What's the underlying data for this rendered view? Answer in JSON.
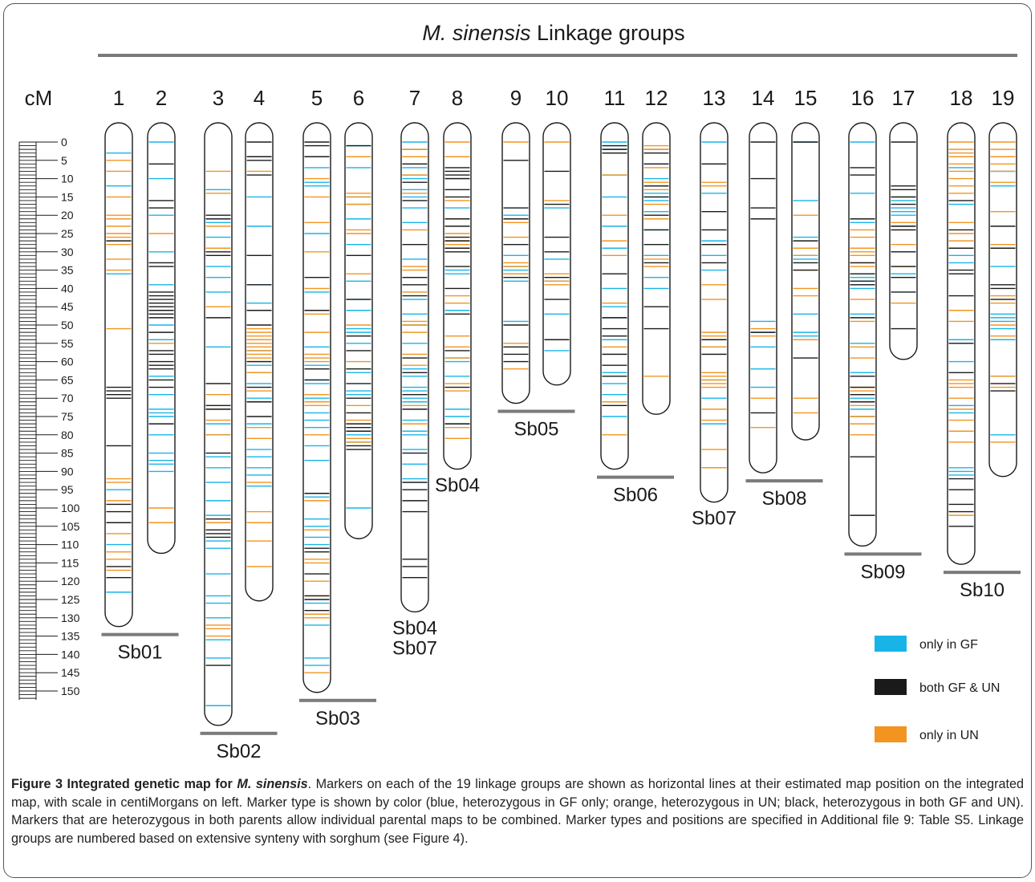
{
  "header": {
    "title_italic": "M. sinensis",
    "title_rest": " Linkage groups"
  },
  "scale": {
    "unit_label": "cM",
    "max_cm": 150,
    "tick_labels": [
      "0",
      "5",
      "10",
      "15",
      "20",
      "25",
      "30",
      "35",
      "40",
      "45",
      "50",
      "55",
      "60",
      "65",
      "70",
      "75",
      "80",
      "85",
      "90",
      "95",
      "100",
      "105",
      "110",
      "115",
      "120",
      "125",
      "130",
      "135",
      "140",
      "145",
      "150"
    ]
  },
  "colors": {
    "gf": "#18b4e8",
    "both": "#1a1a1a",
    "un": "#f39420",
    "bar": "#7a7a7a",
    "outline": "#1a1a1a"
  },
  "legend": [
    {
      "label": "only in GF",
      "color": "#18b4e8"
    },
    {
      "label": "both GF & UN",
      "color": "#1a1a1a"
    },
    {
      "label": "only in UN",
      "color": "#f39420"
    }
  ],
  "chart_data": {
    "type": "genetic-linkage-map",
    "linkage_groups": [
      {
        "id": "1",
        "length_cm": 128,
        "markers": {
          "gf": [
            3,
            12,
            36,
            95,
            110,
            123
          ],
          "both": [
            27,
            67,
            68,
            69,
            70,
            83,
            99,
            101,
            104,
            116,
            119
          ],
          "un": [
            5,
            8,
            15,
            20,
            21,
            23,
            25,
            26,
            28,
            32,
            35,
            51,
            92,
            93,
            98,
            107,
            112,
            114,
            117
          ]
        }
      },
      {
        "id": "2",
        "length_cm": 108,
        "markers": {
          "gf": [
            0,
            10,
            20,
            30,
            39,
            50,
            54,
            64,
            69,
            73,
            74,
            75,
            80,
            85,
            87,
            88,
            90
          ],
          "both": [
            6,
            16,
            18,
            33,
            34,
            41,
            42,
            43,
            44,
            45,
            46,
            47,
            48,
            52,
            57,
            58,
            60,
            61,
            62,
            65,
            67,
            77
          ],
          "un": [
            25,
            55,
            100,
            104
          ]
        }
      },
      {
        "id": "3",
        "length_cm": 155,
        "markers": {
          "gf": [
            13,
            22,
            26,
            34,
            37,
            41,
            56,
            77,
            80,
            86,
            89,
            93,
            98,
            102,
            109,
            111,
            118,
            124,
            126,
            130,
            136,
            141,
            154
          ],
          "both": [
            20,
            21,
            30,
            31,
            48,
            66,
            72,
            73,
            85,
            103,
            106,
            107,
            108,
            143
          ],
          "un": [
            8,
            14,
            23,
            29,
            45,
            66,
            69,
            73,
            76,
            80,
            104,
            132,
            133,
            135
          ]
        }
      },
      {
        "id": "4",
        "length_cm": 121,
        "markers": {
          "gf": [
            15,
            23,
            39,
            44,
            57,
            61,
            63,
            66,
            70,
            77,
            84,
            86,
            89,
            91,
            94
          ],
          "both": [
            0,
            4,
            5,
            9,
            31,
            39,
            46,
            50,
            60,
            67,
            71,
            75
          ],
          "un": [
            4,
            8,
            46,
            51,
            52,
            53,
            54,
            55,
            56,
            57,
            58,
            59,
            60,
            63,
            68,
            78,
            81,
            93,
            101,
            104,
            109,
            116
          ]
        }
      },
      {
        "id": "5",
        "length_cm": 146,
        "markers": {
          "gf": [
            7,
            11,
            12,
            25,
            41,
            56,
            61,
            65,
            66,
            70,
            74,
            76,
            78,
            83,
            87,
            97,
            103,
            105,
            108,
            110,
            126,
            132,
            141,
            143
          ],
          "both": [
            0,
            1,
            4,
            37,
            46,
            62,
            65,
            96,
            111,
            112,
            118,
            124,
            125,
            128
          ],
          "un": [
            10,
            15,
            22,
            30,
            40,
            47,
            52,
            58,
            59,
            60,
            62,
            69,
            71,
            72,
            80,
            98,
            106,
            114,
            115,
            120,
            124,
            129,
            130,
            145
          ]
        }
      },
      {
        "id": "6",
        "length_cm": 104,
        "markers": {
          "gf": [
            1,
            7,
            15,
            17,
            21,
            28,
            38,
            43,
            46,
            51,
            52,
            55,
            63,
            68,
            69,
            80,
            82,
            100
          ],
          "both": [
            1,
            31,
            43,
            53,
            57,
            62,
            66,
            70,
            74,
            77,
            78,
            79,
            83,
            84
          ],
          "un": [
            4,
            14,
            15,
            17,
            24,
            25,
            36,
            50,
            60,
            72,
            76,
            79,
            81,
            82
          ]
        }
      },
      {
        "id": "7",
        "length_cm": 124,
        "markers": {
          "gf": [
            0,
            2,
            7,
            9,
            10,
            13,
            15,
            18,
            22,
            32,
            43,
            47,
            50,
            55,
            62,
            64,
            67,
            68,
            70,
            71,
            76,
            79,
            80,
            84,
            88,
            92,
            93
          ],
          "both": [
            6,
            11,
            16,
            28,
            37,
            39,
            42,
            59,
            63,
            69,
            73,
            85,
            93,
            95,
            98,
            101,
            114,
            116,
            119
          ],
          "un": [
            2,
            4,
            6,
            9,
            14,
            24,
            34,
            35,
            37,
            41,
            49,
            50,
            52,
            58,
            61,
            72,
            77
          ]
        }
      },
      {
        "id": "8",
        "length_cm": 85,
        "markers": {
          "gf": [
            10,
            18,
            35,
            36,
            46,
            59,
            60,
            64,
            73,
            75,
            77
          ],
          "both": [
            7,
            8,
            9,
            10,
            13,
            15,
            21,
            23,
            26,
            27,
            29,
            30,
            34,
            40,
            47,
            57,
            67,
            77
          ],
          "un": [
            0,
            4,
            10,
            16,
            25,
            27,
            28,
            29,
            42,
            44,
            53,
            56,
            59,
            66,
            68,
            78,
            81
          ]
        }
      },
      {
        "id": "9",
        "length_cm": 67,
        "markers": {
          "gf": [
            20,
            21,
            31,
            34,
            35,
            36,
            38,
            49
          ],
          "both": [
            5,
            18,
            21,
            28,
            37,
            50,
            56,
            58,
            60
          ],
          "un": [
            0,
            22,
            26,
            33,
            34,
            36,
            55,
            62
          ]
        }
      },
      {
        "id": "10",
        "length_cm": 62,
        "markers": {
          "gf": [
            18,
            32,
            38,
            47,
            57
          ],
          "both": [
            8,
            17,
            26,
            30,
            37,
            43,
            54
          ],
          "un": [
            0,
            16,
            36,
            38,
            39
          ]
        }
      },
      {
        "id": "11",
        "length_cm": 85,
        "markers": {
          "gf": [
            0,
            1,
            2,
            3,
            9,
            15,
            23,
            29,
            40,
            45,
            48,
            54,
            58,
            63,
            66,
            69,
            75
          ],
          "both": [
            1,
            2,
            3,
            36,
            48,
            51,
            53,
            58,
            61,
            64,
            72
          ],
          "un": [
            9,
            20,
            27,
            31,
            44,
            56,
            71,
            80
          ]
        }
      },
      {
        "id": "12",
        "length_cm": 70,
        "markers": {
          "gf": [
            2,
            6,
            10,
            12,
            14,
            15,
            16,
            19,
            24,
            31,
            37,
            40
          ],
          "both": [
            3,
            6,
            12,
            15,
            20,
            24,
            28,
            33,
            45,
            51
          ],
          "un": [
            1,
            2,
            7,
            11,
            13,
            17,
            21,
            32,
            34,
            64
          ]
        }
      },
      {
        "id": "13",
        "length_cm": 94,
        "markers": {
          "gf": [
            0,
            6,
            14,
            27,
            31,
            35,
            54,
            56,
            65,
            70,
            77,
            89
          ],
          "both": [
            6,
            19,
            24,
            28,
            33,
            54,
            58
          ],
          "un": [
            11,
            12,
            28,
            39,
            43,
            52,
            53,
            56,
            58,
            63,
            64,
            65,
            66,
            67,
            73,
            76,
            84,
            89
          ]
        }
      },
      {
        "id": "14",
        "length_cm": 86,
        "markers": {
          "gf": [
            49,
            52,
            56,
            62,
            67
          ],
          "both": [
            0,
            10,
            18,
            21,
            52,
            74
          ],
          "un": [
            51,
            53,
            70,
            78
          ]
        }
      },
      {
        "id": "15",
        "length_cm": 77,
        "markers": {
          "gf": [
            0,
            16,
            26,
            31,
            32,
            47,
            52,
            53
          ],
          "both": [
            0,
            27,
            33,
            35,
            59
          ],
          "un": [
            20,
            29,
            31,
            35,
            40,
            42,
            54,
            70,
            74
          ]
        }
      },
      {
        "id": "16",
        "length_cm": 106,
        "markers": {
          "gf": [
            0,
            14,
            22,
            36,
            37,
            38,
            39,
            40,
            47,
            55,
            63,
            70,
            73,
            75
          ],
          "both": [
            7,
            9,
            21,
            33,
            36,
            38,
            39,
            48,
            64,
            67,
            69,
            71,
            86,
            102
          ],
          "un": [
            24,
            26,
            29,
            30,
            31,
            33,
            34,
            43,
            49,
            56,
            59,
            67,
            68,
            69,
            72,
            75,
            77,
            80
          ]
        }
      },
      {
        "id": "17",
        "length_cm": 55,
        "markers": {
          "gf": [
            15,
            16,
            18,
            19,
            20,
            23,
            30,
            36
          ],
          "both": [
            0,
            12,
            13,
            15,
            17,
            23,
            24,
            30,
            34,
            37,
            41,
            51
          ],
          "un": [
            15,
            22,
            24,
            28,
            34,
            44
          ]
        }
      },
      {
        "id": "18",
        "length_cm": 111,
        "markers": {
          "gf": [
            7,
            17,
            31,
            33,
            54,
            60,
            72,
            74,
            89,
            90,
            91
          ],
          "both": [
            16,
            24,
            29,
            35,
            36,
            42,
            55,
            63,
            92,
            95,
            99,
            101,
            105
          ],
          "un": [
            0,
            2,
            3,
            4,
            6,
            8,
            10,
            12,
            14,
            22,
            25,
            27,
            46,
            49,
            55,
            65,
            66,
            67,
            70,
            73,
            76,
            79,
            82,
            102
          ]
        }
      },
      {
        "id": "19",
        "length_cm": 87,
        "markers": {
          "gf": [
            8,
            12,
            34,
            47,
            48,
            49,
            51,
            54,
            64,
            80
          ],
          "both": [
            23,
            29,
            39,
            40,
            43,
            66,
            68
          ],
          "un": [
            0,
            2,
            4,
            6,
            8,
            11,
            19,
            28,
            42,
            44,
            50,
            53,
            64,
            67,
            82
          ]
        }
      }
    ],
    "sorghum_groups": [
      {
        "label": "Sb01",
        "groups": [
          "1",
          "2"
        ]
      },
      {
        "label": "Sb02",
        "groups": [
          "3",
          "4"
        ]
      },
      {
        "label": "Sb03",
        "groups": [
          "5",
          "6"
        ]
      },
      {
        "label": "Sb04\nSb07",
        "groups": [
          "7"
        ]
      },
      {
        "label": "Sb04",
        "groups": [
          "8"
        ]
      },
      {
        "label": "Sb05",
        "groups": [
          "9",
          "10"
        ]
      },
      {
        "label": "Sb06",
        "groups": [
          "11",
          "12"
        ]
      },
      {
        "label": "Sb07",
        "groups": [
          "13"
        ]
      },
      {
        "label": "Sb08",
        "groups": [
          "14",
          "15"
        ]
      },
      {
        "label": "Sb09",
        "groups": [
          "16",
          "17"
        ]
      },
      {
        "label": "Sb10",
        "groups": [
          "18",
          "19"
        ]
      }
    ]
  },
  "caption": {
    "bold_prefix": "Figure 3 Integrated genetic map for ",
    "bold_italic": "M. sinensis",
    "body": ". Markers on each of the 19 linkage groups are shown as horizontal lines at their estimated map position on the integrated map, with scale in centiMorgans on left. Marker type is shown by color (blue, heterozygous in GF only; orange, heterozygous in UN; black, heterozygous in both GF and UN). Markers that are heterozygous in both parents allow individual parental maps to be combined. Marker types and positions are specified in Additional file 9: Table S5. Linkage groups are numbered based on extensive synteny with sorghum (see Figure 4)."
  }
}
